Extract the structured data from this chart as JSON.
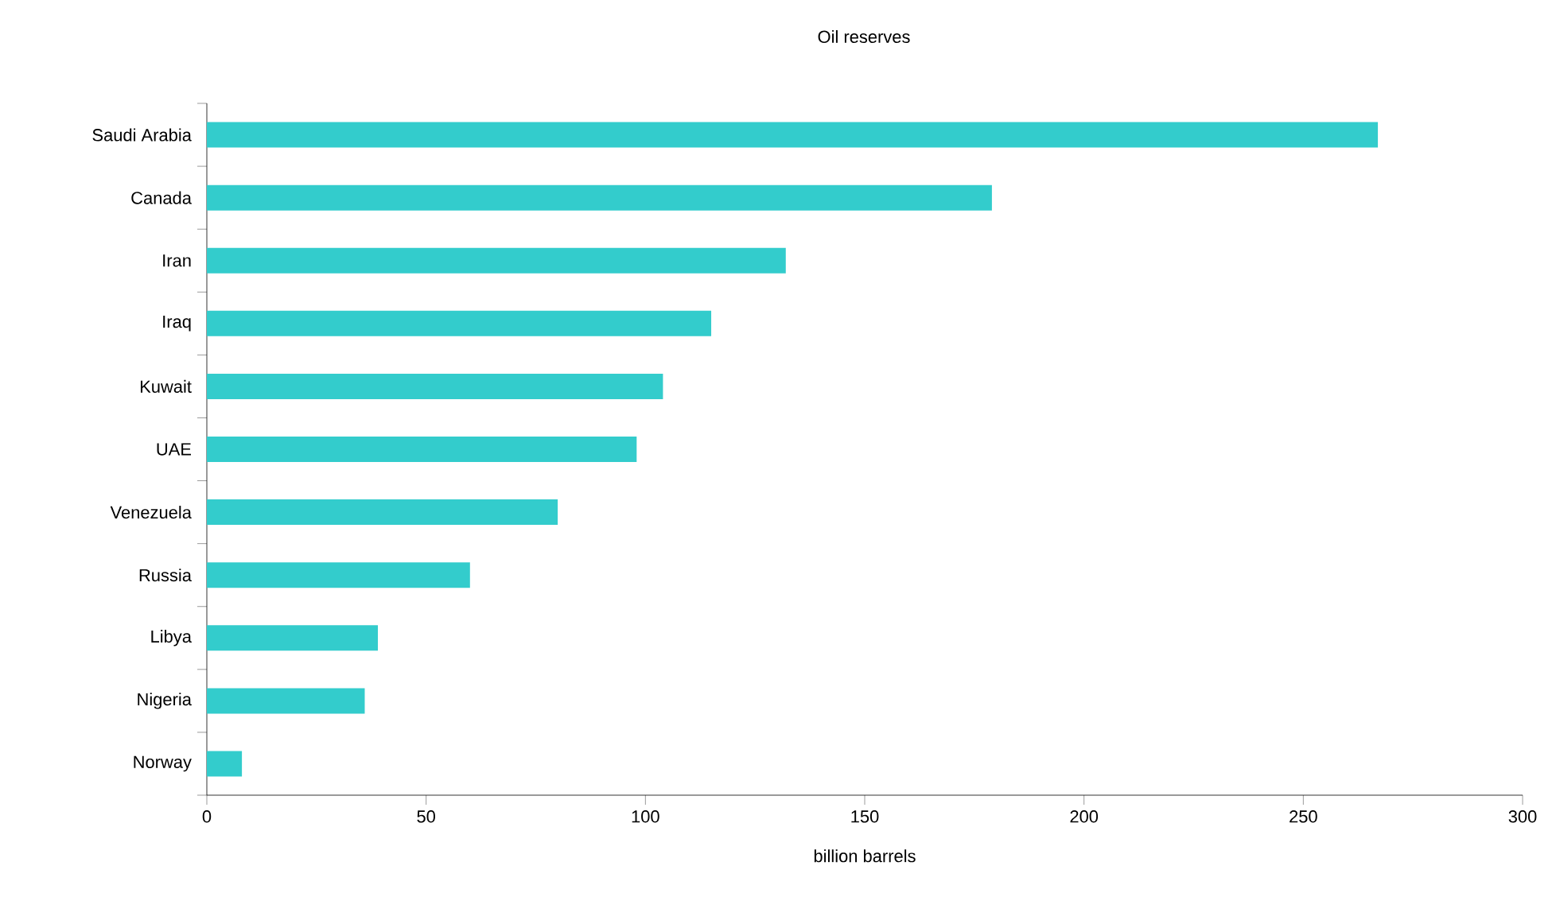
{
  "chart_data": {
    "type": "bar",
    "orientation": "horizontal",
    "title": "Oil reserves",
    "xlabel": "billion barrels",
    "categories": [
      "Saudi Arabia",
      "Canada",
      "Iran",
      "Iraq",
      "Kuwait",
      "UAE",
      "Venezuela",
      "Russia",
      "Libya",
      "Nigeria",
      "Norway"
    ],
    "values": [
      267,
      179,
      132,
      115,
      104,
      98,
      80,
      60,
      39,
      36,
      8
    ],
    "color": "#33cccc",
    "xlim": [
      0,
      300
    ],
    "xticks": [
      0,
      50,
      100,
      150,
      200,
      250,
      300
    ]
  }
}
